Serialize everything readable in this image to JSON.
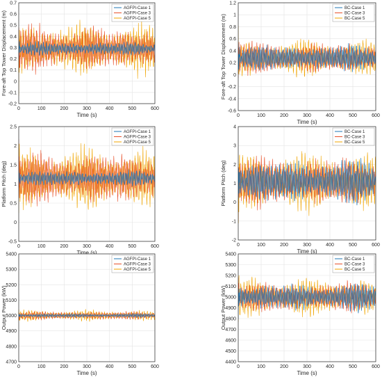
{
  "colors": {
    "case1": "#1f77b4",
    "case3": "#e8502a",
    "case5": "#f0a500",
    "grid": "#e3e3e3",
    "axis": "#262626"
  },
  "chart_data": [
    {
      "type": "line",
      "position": "top-left",
      "xlabel": "Time (s)",
      "ylabel": "Fore-aft Top Tower Displacement (m)",
      "xlim": [
        0,
        600
      ],
      "ylim": [
        -0.2,
        0.7
      ],
      "xticks": [
        "0",
        "100",
        "200",
        "300",
        "400",
        "500",
        "600"
      ],
      "yticks": [
        "-0.2",
        "-0.1",
        "0",
        "0.1",
        "0.2",
        "0.3",
        "0.4",
        "0.5",
        "0.6",
        "0.7"
      ],
      "grid": true,
      "legend_position": "top-right",
      "series": [
        {
          "name": "AGFPI-Case 1",
          "mean": 0.29,
          "amplitude": 0.06,
          "seed": 11
        },
        {
          "name": "AGFPI-Case 3",
          "mean": 0.29,
          "amplitude": 0.19,
          "seed": 13
        },
        {
          "name": "AGFPI-Case 5",
          "mean": 0.29,
          "amplitude": 0.21,
          "seed": 17
        }
      ]
    },
    {
      "type": "line",
      "position": "top-right",
      "xlabel": "Time (s)",
      "ylabel": "Fore-aft Top Tower Displacement (m)",
      "xlim": [
        0,
        600
      ],
      "ylim": [
        -0.6,
        1.2
      ],
      "xticks": [
        "0",
        "100",
        "200",
        "300",
        "400",
        "500",
        "600"
      ],
      "yticks": [
        "-0.6",
        "-0.4",
        "-0.2",
        "0",
        "0.2",
        "0.4",
        "0.6",
        "0.8",
        "1",
        "1.2"
      ],
      "grid": true,
      "legend_position": "top-right",
      "series": [
        {
          "name": "BC-Case 1",
          "mean": 0.28,
          "amplitude": 0.22,
          "seed": 21
        },
        {
          "name": "BC-Case 3",
          "mean": 0.28,
          "amplitude": 0.26,
          "seed": 23
        },
        {
          "name": "BC-Case 5",
          "mean": 0.28,
          "amplitude": 0.28,
          "seed": 27
        }
      ]
    },
    {
      "type": "line",
      "position": "middle-left",
      "xlabel": "Time (s)",
      "ylabel": "Platform Pitch (deg)",
      "xlim": [
        0,
        600
      ],
      "ylim": [
        -0.5,
        2.5
      ],
      "xticks": [
        "0",
        "100",
        "200",
        "300",
        "400",
        "500",
        "600"
      ],
      "yticks": [
        "-0.5",
        "0",
        "0.5",
        "1",
        "1.5",
        "2",
        "2.5"
      ],
      "grid": true,
      "legend_position": "top-right",
      "series": [
        {
          "name": "AGFPI-Case 1",
          "mean": 1.15,
          "amplitude": 0.2,
          "seed": 31
        },
        {
          "name": "AGFPI-Case 3",
          "mean": 1.15,
          "amplitude": 0.68,
          "seed": 33
        },
        {
          "name": "AGFPI-Case 5",
          "mean": 1.15,
          "amplitude": 0.72,
          "seed": 37
        }
      ]
    },
    {
      "type": "line",
      "position": "middle-right",
      "xlabel": "Time (s)",
      "ylabel": "Platform Pitch (deg)",
      "xlim": [
        0,
        600
      ],
      "ylim": [
        -2,
        4
      ],
      "xticks": [
        "0",
        "100",
        "200",
        "300",
        "400",
        "500",
        "600"
      ],
      "yticks": [
        "-2",
        "-1",
        "0",
        "1",
        "2",
        "3",
        "4"
      ],
      "grid": true,
      "legend_position": "top-right",
      "series": [
        {
          "name": "BC-Case 1",
          "mean": 1.1,
          "amplitude": 1.1,
          "seed": 41
        },
        {
          "name": "BC-Case 3",
          "mean": 1.1,
          "amplitude": 1.3,
          "seed": 43
        },
        {
          "name": "BC-Case 5",
          "mean": 1.1,
          "amplitude": 1.45,
          "seed": 47
        }
      ]
    },
    {
      "type": "line",
      "position": "bottom-left",
      "xlabel": "Time (s)",
      "ylabel": "Output Power (kW)",
      "xlim": [
        0,
        600
      ],
      "ylim": [
        4700,
        5400
      ],
      "xticks": [
        "0",
        "100",
        "200",
        "300",
        "400",
        "500",
        "600"
      ],
      "yticks": [
        "4700",
        "4800",
        "4900",
        "5000",
        "5100",
        "5200",
        "5300",
        "5400"
      ],
      "grid": true,
      "legend_position": "top-right",
      "series": [
        {
          "name": "AGFPI-Case 1",
          "mean": 5000,
          "amplitude": 12,
          "seed": 51
        },
        {
          "name": "AGFPI-Case 3",
          "mean": 5000,
          "amplitude": 28,
          "seed": 53
        },
        {
          "name": "AGFPI-Case 5",
          "mean": 5000,
          "amplitude": 32,
          "seed": 57
        }
      ]
    },
    {
      "type": "line",
      "position": "bottom-right",
      "xlabel": "Time (s)",
      "ylabel": "Output Power (kW)",
      "xlim": [
        0,
        600
      ],
      "ylim": [
        4400,
        5400
      ],
      "xticks": [
        "0",
        "100",
        "200",
        "300",
        "400",
        "500",
        "600"
      ],
      "yticks": [
        "4400",
        "4500",
        "4600",
        "4700",
        "4800",
        "4900",
        "5000",
        "5100",
        "5200",
        "5300",
        "5400"
      ],
      "grid": true,
      "legend_position": "top-right",
      "series": [
        {
          "name": "BC-Case 1",
          "mean": 5000,
          "amplitude": 120,
          "seed": 61
        },
        {
          "name": "BC-Case 3",
          "mean": 5000,
          "amplitude": 140,
          "seed": 63
        },
        {
          "name": "BC-Case 5",
          "mean": 5000,
          "amplitude": 160,
          "seed": 67
        }
      ]
    }
  ]
}
